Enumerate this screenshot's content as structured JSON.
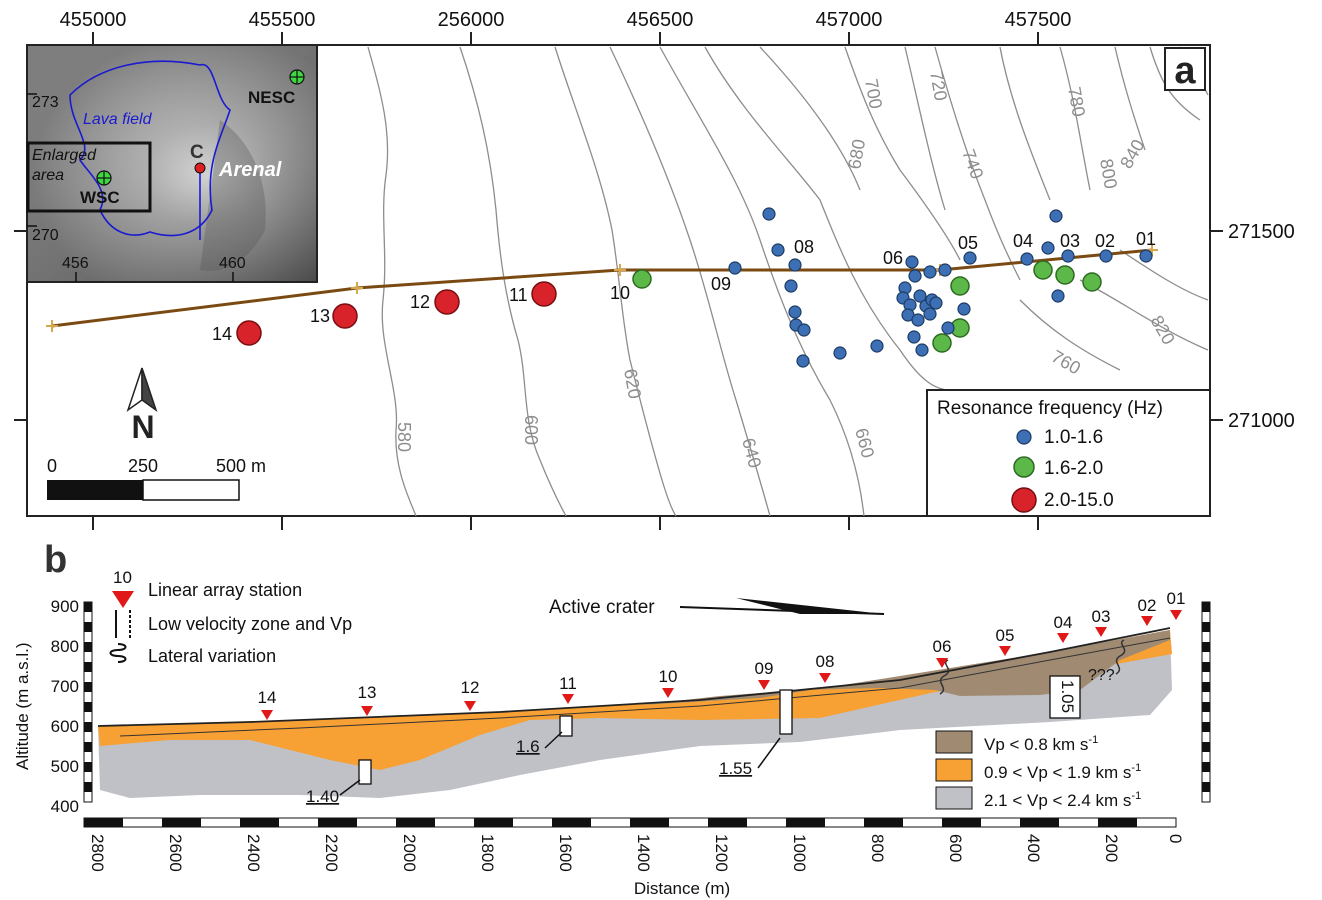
{
  "panel_a": {
    "label": "a",
    "x_ticks": [
      "455000",
      "455500",
      "256000",
      "456500",
      "457000",
      "457500"
    ],
    "y_ticks": [
      "271500",
      "271000"
    ],
    "contours": [
      "580",
      "600",
      "620",
      "640",
      "660",
      "680",
      "700",
      "720",
      "740",
      "760",
      "780",
      "800",
      "820",
      "840"
    ],
    "stations": [
      "01",
      "02",
      "03",
      "04",
      "05",
      "06",
      "08",
      "09",
      "10",
      "11",
      "12",
      "13",
      "14"
    ],
    "north": "N",
    "scale": {
      "labels": [
        "0",
        "250",
        "500 m"
      ]
    },
    "legend": {
      "title": "Resonance frequency (Hz)",
      "entries": [
        {
          "label": "1.0-1.6",
          "color": "#3c6fb4"
        },
        {
          "label": "1.6-2.0",
          "color": "#5cb848"
        },
        {
          "label": "2.0-15.0",
          "color": "#d8232a"
        }
      ]
    },
    "inset": {
      "lava_field": "Lava field",
      "enlarged_area": [
        "Enlarged",
        "area"
      ],
      "wsc": "WSC",
      "nesc": "NESC",
      "crater": "C",
      "volcano": "Arenal",
      "y_ticks": [
        "273",
        "270"
      ],
      "x_ticks": [
        "456",
        "460"
      ]
    }
  },
  "panel_b": {
    "label": "b",
    "legend": {
      "station": "Linear array station",
      "station_num": "10",
      "lvz": "Low velocity zone and Vp",
      "lateral": "Lateral variation"
    },
    "crater": "Active crater",
    "y_title": "Altitude (m a.s.l.)",
    "y_ticks": [
      "900",
      "800",
      "700",
      "600",
      "500",
      "400"
    ],
    "x_title": "Distance (m)",
    "x_ticks": [
      "2800",
      "2600",
      "2400",
      "2200",
      "2000",
      "1800",
      "1600",
      "1400",
      "1200",
      "1000",
      "800",
      "600",
      "400",
      "200",
      "0"
    ],
    "stations": [
      "14",
      "13",
      "12",
      "11",
      "10",
      "09",
      "08",
      "06",
      "05",
      "04",
      "03",
      "02",
      "01"
    ],
    "lvz_values": [
      "1.40",
      "1.6",
      "1.55",
      "1.05"
    ],
    "uncertain": "???",
    "layers": [
      {
        "label": "Vp < 0.8 km s",
        "sup": "-1",
        "color": "#a08a72"
      },
      {
        "label": "0.9 < Vp < 1.9 km s",
        "sup": "-1",
        "color": "#f7a033"
      },
      {
        "label": "2.1 < Vp < 2.4 km s",
        "sup": "-1",
        "color": "#bfc1c7"
      }
    ]
  }
}
